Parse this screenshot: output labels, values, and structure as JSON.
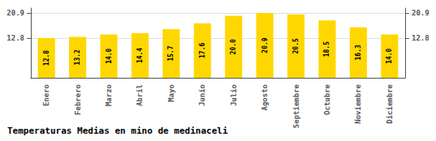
{
  "chart_data": {
    "type": "bar",
    "title": "Temperaturas Medias en mino de medinaceli",
    "categories": [
      "Enero",
      "Febrero",
      "Marzo",
      "Abril",
      "Mayo",
      "Junio",
      "Julio",
      "Agosto",
      "Septiembre",
      "Octubre",
      "Noviembre",
      "Diciembre"
    ],
    "values": [
      12.8,
      13.2,
      14.0,
      14.4,
      15.7,
      17.6,
      20.0,
      20.9,
      20.5,
      18.5,
      16.3,
      14.0
    ],
    "value_labels": [
      "12.8",
      "13.2",
      "14.0",
      "14.4",
      "15.7",
      "17.6",
      "20.0",
      "20.9",
      "20.5",
      "18.5",
      "16.3",
      "14.0"
    ],
    "data_labels": true,
    "color": "#FFD700",
    "ylim": [
      0,
      22.5
    ],
    "yticks": [
      12.8,
      20.9
    ],
    "y2lim": [
      0,
      22.5
    ],
    "y2ticks": [
      12.8,
      20.9
    ],
    "grid": true
  }
}
